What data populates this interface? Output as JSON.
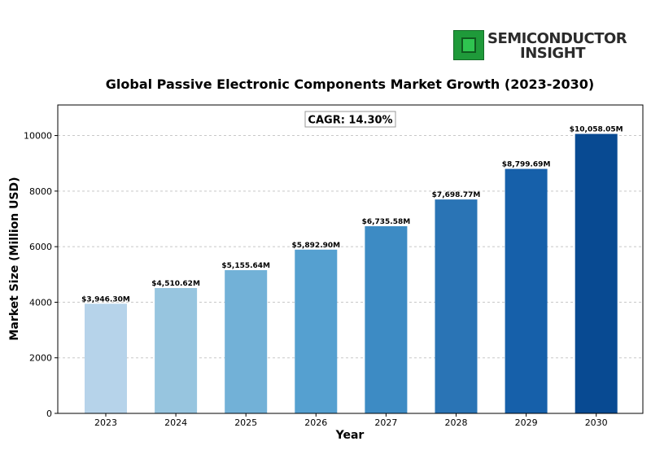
{
  "brand": {
    "line1": "SEMICONDUCTOR",
    "line2": "INSIGHT",
    "colors": {
      "chip": "#1f9a3a",
      "text": "#2b2b2b"
    }
  },
  "chart_data": {
    "type": "bar",
    "title": "Global Passive Electronic Components Market Growth (2023-2030)",
    "xlabel": "Year",
    "ylabel": "Market Size (Million USD)",
    "annotation": "CAGR: 14.30%",
    "ylim": [
      0,
      11100
    ],
    "yticks": [
      0,
      2000,
      4000,
      6000,
      8000,
      10000
    ],
    "grid": "horizontal dashed",
    "categories": [
      "2023",
      "2024",
      "2025",
      "2026",
      "2027",
      "2028",
      "2029",
      "2030"
    ],
    "values": [
      3946.3,
      4510.62,
      5155.64,
      5892.9,
      6735.58,
      7698.77,
      8799.69,
      10058.05
    ],
    "value_labels": [
      "$3,946.30M",
      "$4,510.62M",
      "$5,155.64M",
      "$5,892.90M",
      "$6,735.58M",
      "$7,698.77M",
      "$8,799.69M",
      "$10,058.05M"
    ],
    "colors": [
      "#b6d3ea",
      "#97c5df",
      "#72b1d7",
      "#55a0d0",
      "#3d8bc4",
      "#2a74b5",
      "#1660aa",
      "#084a92"
    ]
  }
}
